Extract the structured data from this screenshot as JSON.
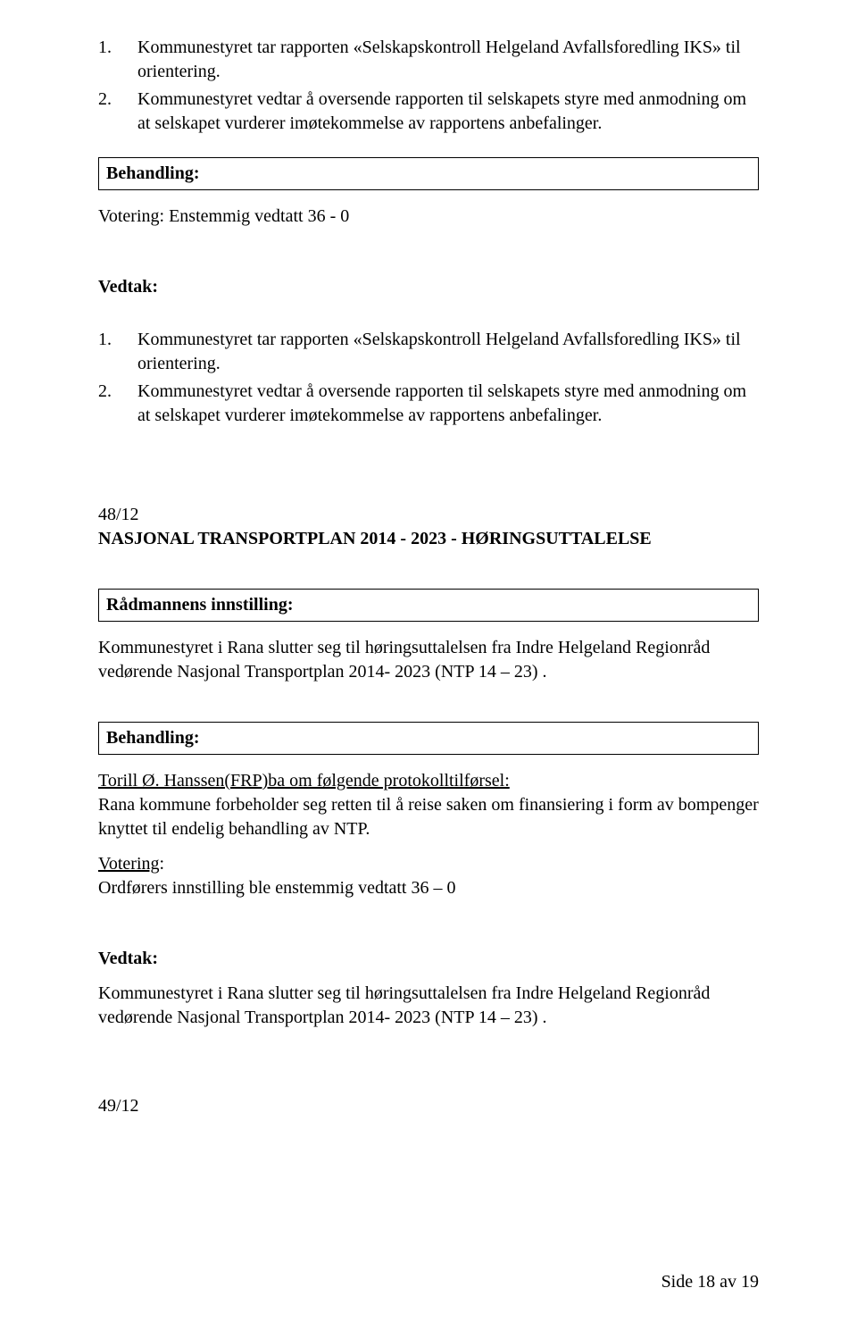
{
  "list1": {
    "items": [
      {
        "num": "1.",
        "text": "Kommunestyret tar rapporten «Selskapskontroll Helgeland Avfallsforedling IKS» til orientering."
      },
      {
        "num": "2.",
        "text": "Kommunestyret vedtar å oversende rapporten til selskapets styre med anmodning om at selskapet vurderer imøtekommelse av rapportens anbefalinger."
      }
    ]
  },
  "behandling1_label": "Behandling:",
  "votering1": "Votering: Enstemmig vedtatt 36 - 0",
  "vedtak1_label": "Vedtak:",
  "list2": {
    "items": [
      {
        "num": "1.",
        "text": "Kommunestyret tar rapporten «Selskapskontroll Helgeland Avfallsforedling IKS» til orientering."
      },
      {
        "num": "2.",
        "text": "Kommunestyret vedtar å oversende rapporten til selskapets styre med anmodning om at selskapet vurderer imøtekommelse av rapportens anbefalinger."
      }
    ]
  },
  "case48": {
    "ref": "48/12",
    "title": "NASJONAL TRANSPORTPLAN  2014 - 2023 - HØRINGSUTTALELSE"
  },
  "radmann_label": "Rådmannens innstilling:",
  "radmann_text": "Kommunestyret i Rana slutter seg til høringsuttalelsen fra Indre Helgeland Regionråd vedørende Nasjonal Transportplan 2014- 2023 (NTP 14 – 23) .",
  "behandling2_label": "Behandling:",
  "torill_lead": "Torill Ø. Hanssen(FRP)ba om følgende protokolltilførsel:",
  "torill_text": "Rana kommune forbeholder seg retten til å reise saken om finansiering i form av bompenger knyttet til endelig behandling av NTP.",
  "votering2_label": "Votering",
  "votering2_colon": ":",
  "votering2_text": "Ordførers innstilling ble enstemmig vedtatt 36 – 0",
  "vedtak2_label": "Vedtak:",
  "vedtak2_text": "Kommunestyret i Rana slutter seg til høringsuttalelsen fra Indre Helgeland Regionråd vedørende Nasjonal Transportplan 2014- 2023 (NTP 14 – 23) .",
  "case49_ref": "49/12",
  "footer": "Side 18 av 19"
}
